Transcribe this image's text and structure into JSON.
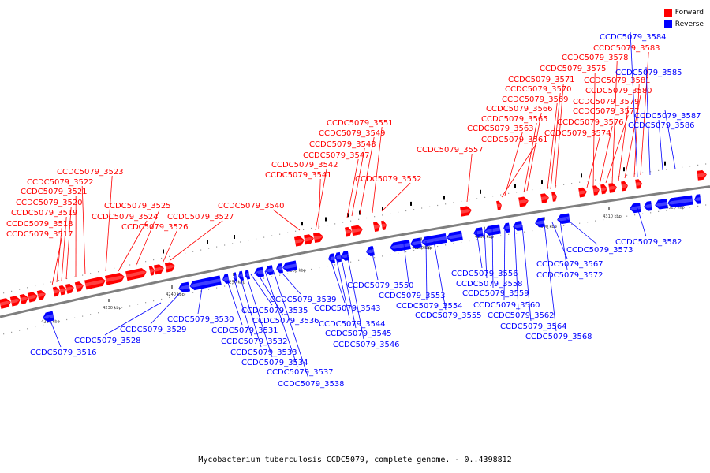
{
  "legend": {
    "forward_label": "Forward",
    "reverse_label": "Reverse",
    "forward_color": "#ff0000",
    "reverse_color": "#0000ff"
  },
  "caption": "Mycobacterium tuberculosis CCDC5079, complete genome. - 0..4398812",
  "ruler_ticks": [
    "4220 kbp",
    "4230 kbp",
    "4240 kbp",
    "4250 kbp",
    "4260 kbp",
    "4270 kbp",
    "4280 kbp",
    "4290 kbp",
    "4300 kbp",
    "4310 kbp",
    "4320 kbp"
  ],
  "forward_genes": [
    "CCDC5079_3517",
    "CCDC5079_3518",
    "CCDC5079_3519",
    "CCDC5079_3520",
    "CCDC5079_3521",
    "CCDC5079_3522",
    "CCDC5079_3523",
    "CCDC5079_3524",
    "CCDC5079_3525",
    "CCDC5079_3526",
    "CCDC5079_3527",
    "CCDC5079_3540",
    "CCDC5079_3541",
    "CCDC5079_3542",
    "CCDC5079_3547",
    "CCDC5079_3548",
    "CCDC5079_3549",
    "CCDC5079_3551",
    "CCDC5079_3552",
    "CCDC5079_3557",
    "CCDC5079_3561",
    "CCDC5079_3563",
    "CCDC5079_3565",
    "CCDC5079_3566",
    "CCDC5079_3569",
    "CCDC5079_3570",
    "CCDC5079_3571",
    "CCDC5079_3574",
    "CCDC5079_3575",
    "CCDC5079_3576",
    "CCDC5079_3577",
    "CCDC5079_3578",
    "CCDC5079_3579",
    "CCDC5079_3580",
    "CCDC5079_3581",
    "CCDC5079_3583"
  ],
  "reverse_genes": [
    "CCDC5079_3516",
    "CCDC5079_3528",
    "CCDC5079_3529",
    "CCDC5079_3530",
    "CCDC5079_3531",
    "CCDC5079_3532",
    "CCDC5079_3533",
    "CCDC5079_3534",
    "CCDC5079_3535",
    "CCDC5079_3536",
    "CCDC5079_3537",
    "CCDC5079_3538",
    "CCDC5079_3539",
    "CCDC5079_3543",
    "CCDC5079_3544",
    "CCDC5079_3545",
    "CCDC5079_3546",
    "CCDC5079_3550",
    "CCDC5079_3553",
    "CCDC5079_3554",
    "CCDC5079_3555",
    "CCDC5079_3556",
    "CCDC5079_3558",
    "CCDC5079_3559",
    "CCDC5079_3560",
    "CCDC5079_3562",
    "CCDC5079_3564",
    "CCDC5079_3567",
    "CCDC5079_3568",
    "CCDC5079_3572",
    "CCDC5079_3573",
    "CCDC5079_3582",
    "CCDC5079_3584",
    "CCDC5079_3585",
    "CCDC5079_3586",
    "CCDC5079_3587"
  ]
}
